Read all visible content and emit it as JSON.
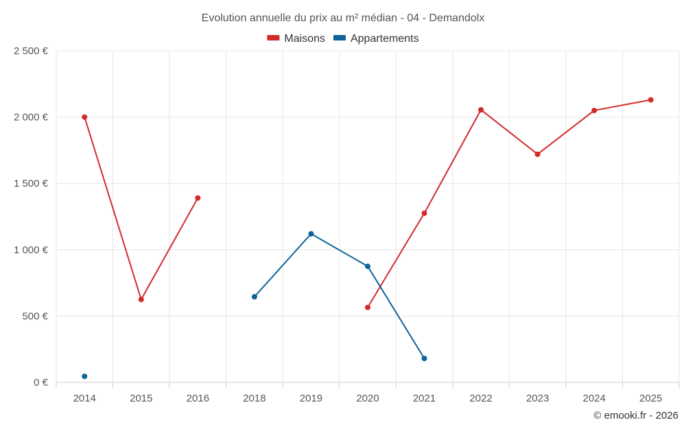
{
  "chart_data": {
    "type": "line",
    "title": "Evolution annuelle du prix au m² médian - 04 - Demandolx",
    "categories": [
      "2014",
      "2015",
      "2016",
      "2018",
      "2019",
      "2020",
      "2021",
      "2022",
      "2023",
      "2024",
      "2025"
    ],
    "y_ticks": [
      "0 €",
      "500 €",
      "1 000 €",
      "1 500 €",
      "2 000 €",
      "2 500 €"
    ],
    "ylim": [
      0,
      2500
    ],
    "grid": true,
    "legend_position": "top-center",
    "series": [
      {
        "name": "Maisons",
        "color": "#d32a2a",
        "values": [
          2000,
          625,
          1390,
          null,
          null,
          565,
          1275,
          2055,
          1720,
          2050,
          2130
        ]
      },
      {
        "name": "Appartements",
        "color": "#0e6399",
        "values": [
          45,
          null,
          null,
          645,
          1120,
          875,
          180,
          null,
          null,
          null,
          null
        ]
      }
    ]
  },
  "credit": "© emooki.fr - 2026"
}
